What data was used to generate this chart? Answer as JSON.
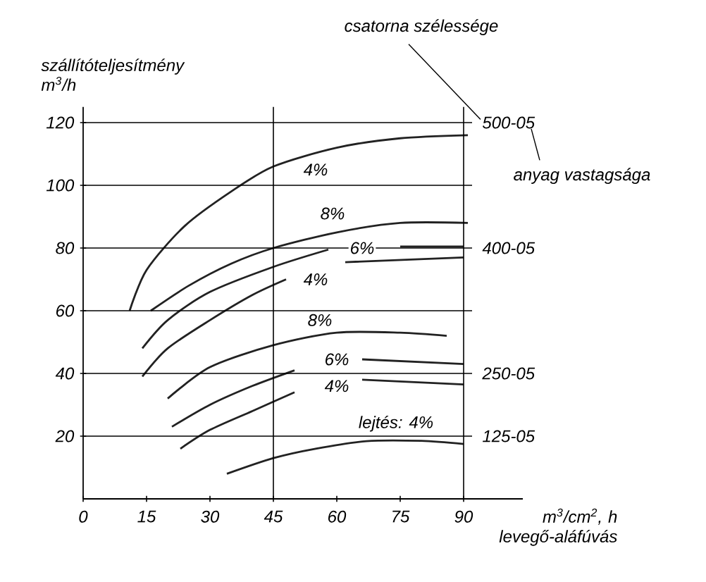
{
  "chart_data": {
    "type": "line",
    "xlabel": "m$^{3}$/cm$^{2}$, h levegő-aláfúvás",
    "ylabel": "szállítóteljesítmény m$^{3}$/h",
    "xlim": [
      0,
      104
    ],
    "ylim": [
      0,
      125
    ],
    "xticks": [
      0,
      15,
      30,
      45,
      60,
      75,
      90
    ],
    "yticks": [
      20,
      40,
      60,
      80,
      100,
      120
    ],
    "grid": "y",
    "marker": "none",
    "line_style": "solid",
    "ref_lines": [
      {
        "axis": "x",
        "value": 45
      },
      {
        "axis": "x",
        "value": 90
      }
    ],
    "series": [
      {
        "color": "#222222",
        "x": [
          11,
          15,
          24,
          35,
          45,
          60,
          75,
          91
        ],
        "values": [
          60,
          73,
          87,
          98,
          106,
          112,
          115,
          116
        ]
      },
      {
        "color": "#222222",
        "x": [
          16,
          25,
          35,
          45,
          60,
          75,
          91
        ],
        "values": [
          60,
          68,
          75,
          80,
          85,
          88,
          88
        ]
      },
      {
        "color": "#222222",
        "x": [
          14,
          20,
          30,
          45,
          58,
          66,
          75,
          90
        ],
        "values": [
          48,
          57,
          66,
          74,
          79.5,
          null,
          80.5,
          80.5
        ]
      },
      {
        "color": "#222222",
        "x": [
          14,
          20,
          30,
          40,
          48,
          55,
          62,
          90
        ],
        "values": [
          39,
          48,
          57,
          65,
          70,
          null,
          75.5,
          77
        ]
      },
      {
        "color": "#222222",
        "x": [
          20,
          30,
          45,
          60,
          75,
          86
        ],
        "values": [
          32,
          42,
          49,
          53,
          53,
          52
        ]
      },
      {
        "color": "#222222",
        "x": [
          21,
          30,
          40,
          50,
          60,
          66,
          90
        ],
        "values": [
          23,
          30,
          36,
          41,
          null,
          44.5,
          43
        ]
      },
      {
        "color": "#222222",
        "x": [
          23,
          30,
          40,
          50,
          60,
          66,
          90
        ],
        "values": [
          16,
          22,
          28,
          34,
          null,
          38,
          36.5
        ]
      },
      {
        "color": "#222222",
        "x": [
          34,
          45,
          55,
          67,
          80,
          90
        ],
        "values": [
          8,
          13,
          16,
          18.4,
          18.5,
          17.5
        ]
      }
    ],
    "annotations": [
      "csatorna szélessége",
      "anyag vastagsága",
      "500-05",
      "400-05",
      "250-05",
      "125-05",
      "lejtés: 4%",
      {
        "text": "4%",
        "x": 55,
        "y": 105
      },
      {
        "text": "8%",
        "x": 59,
        "y": 91
      },
      {
        "text": "6%",
        "x": 66,
        "y": 80
      },
      {
        "text": "4%",
        "x": 55,
        "y": 70
      },
      {
        "text": "8%",
        "x": 56,
        "y": 57
      },
      {
        "text": "6%",
        "x": 60,
        "y": 44.5
      },
      {
        "text": "4%",
        "x": 60,
        "y": 36
      }
    ]
  }
}
